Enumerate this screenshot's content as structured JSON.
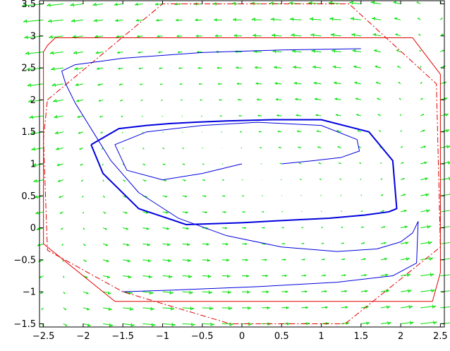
{
  "chart_data": {
    "type": "line",
    "title": "",
    "xlabel": "",
    "ylabel": "",
    "xlim": [
      -2.55,
      2.55
    ],
    "ylim": [
      -1.55,
      3.55
    ],
    "grid": false,
    "legend": "none",
    "x_ticks": [
      -2.5,
      -2,
      -1.5,
      -1,
      -0.5,
      0,
      0.5,
      1,
      1.5,
      2,
      2.5
    ],
    "x_tick_labels": [
      "−2.5",
      "−2",
      "−1.5",
      "−1",
      "−0.5",
      "0",
      "0.5",
      "1",
      "1.5",
      "2",
      "2.5"
    ],
    "y_ticks": [
      -1.5,
      -1,
      -0.5,
      0,
      0.5,
      1,
      1.5,
      2,
      2.5,
      3,
      3.5
    ],
    "y_tick_labels": [
      "−1.5",
      "−1",
      "−0.5",
      "0",
      "0.5",
      "1",
      "1.5",
      "2",
      "2.5",
      "3",
      "3.5"
    ],
    "vector_field": {
      "color": "#00e000",
      "x": [
        -2.5,
        -2.25,
        -2.0,
        -1.75,
        -1.5,
        -1.25,
        -1.0,
        -0.75,
        -0.5,
        -0.25,
        0.0,
        0.25,
        0.5,
        0.75,
        1.0,
        1.25,
        1.5,
        1.75,
        2.0,
        2.25,
        2.5
      ],
      "y": [
        -1.5,
        -1.25,
        -1.0,
        -0.75,
        -0.5,
        -0.25,
        0.0,
        0.25,
        0.5,
        0.75,
        1.0,
        1.25,
        1.5,
        1.75,
        2.0,
        2.25,
        2.5,
        2.75,
        3.0,
        3.25,
        3.5
      ],
      "field": "dx = -(y - x^3/3 + x - 1), dy = 0.2 * x"
    },
    "series": [
      {
        "style": "solid",
        "color": "#e00000",
        "x": [
          -2.45,
          -2.35,
          2.15,
          2.5,
          2.5,
          2.4,
          -1.6,
          -2.5,
          -2.5,
          -2.45
        ],
        "y": [
          2.85,
          2.97,
          2.97,
          2.4,
          -0.7,
          -1.15,
          -1.15,
          -0.25,
          2.75,
          2.85
        ]
      },
      {
        "style": "dashdot",
        "color": "#e00000",
        "x": [
          -2.45,
          -1.0,
          1.35,
          2.45,
          2.5,
          1.3,
          -0.15,
          -1.5,
          -2.45,
          -2.5,
          -2.45
        ],
        "y": [
          2.0,
          3.5,
          3.5,
          2.25,
          -0.3,
          -1.5,
          -1.5,
          -1.0,
          -0.35,
          1.4,
          2.0
        ]
      },
      {
        "style": "solid",
        "color": "#0000dd",
        "x": [
          1.5,
          0.5,
          -0.5,
          -1.5,
          -2.1,
          -2.27,
          -2.22,
          -2.1,
          -1.9,
          -1.65,
          -1.3,
          -0.8,
          -0.2,
          0.5,
          1.2,
          1.7,
          2.0,
          2.15,
          2.22,
          2.2,
          1.9,
          1.2,
          0.2,
          -0.8,
          -1.5
        ],
        "y": [
          2.8,
          2.78,
          2.74,
          2.65,
          2.55,
          2.45,
          2.25,
          1.95,
          1.55,
          1.05,
          0.55,
          0.15,
          -0.12,
          -0.3,
          -0.37,
          -0.33,
          -0.22,
          -0.08,
          0.1,
          -0.55,
          -0.75,
          -0.85,
          -0.92,
          -0.97,
          -1.0
        ]
      },
      {
        "style": "solid",
        "color": "#0000dd",
        "width": 2,
        "closed": true,
        "x": [
          -1.9,
          -1.55,
          -1.2,
          -0.9,
          -0.6,
          -0.2,
          0.4,
          1.0,
          1.6,
          1.9,
          1.95,
          1.85,
          1.55,
          1.1,
          0.6,
          0.0,
          -0.7,
          -1.3,
          -1.75,
          -1.9
        ],
        "y": [
          1.3,
          1.55,
          1.6,
          1.63,
          1.65,
          1.67,
          1.69,
          1.69,
          1.5,
          1.05,
          0.3,
          0.25,
          0.2,
          0.15,
          0.12,
          0.08,
          0.05,
          0.3,
          0.85,
          1.3
        ]
      },
      {
        "style": "solid",
        "color": "#0000dd",
        "x": [
          0.5,
          0.9,
          1.25,
          1.48,
          1.45,
          1.0,
          0.2,
          -0.5,
          -1.2,
          -1.6,
          -1.45,
          -1.0,
          -0.5,
          0.0
        ],
        "y": [
          1.0,
          1.05,
          1.1,
          1.2,
          1.38,
          1.6,
          1.65,
          1.6,
          1.5,
          1.3,
          0.9,
          0.75,
          0.85,
          1.0
        ]
      }
    ]
  }
}
